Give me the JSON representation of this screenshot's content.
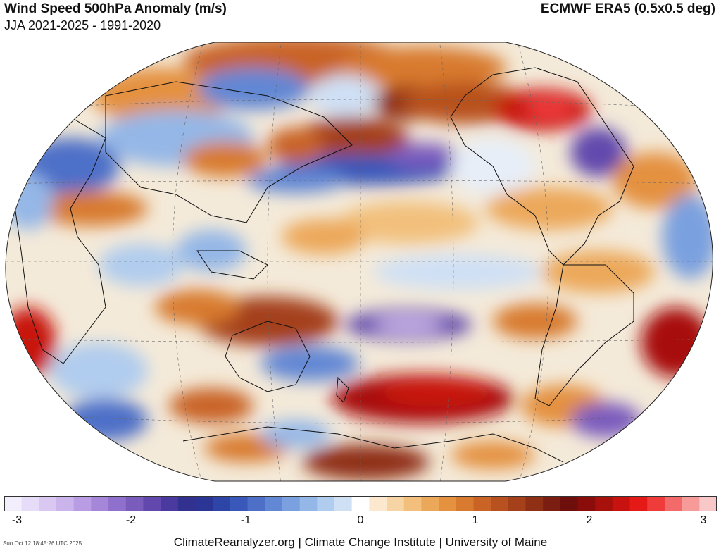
{
  "header": {
    "title": "Wind Speed 500hPa Anomaly (m/s)",
    "subtitle": "JJA 2021-2025 - 1991-2020",
    "source": "ECMWF ERA5 (0.5x0.5 deg)"
  },
  "colorbar": {
    "ticks": [
      "-3",
      "-2",
      "-1",
      "0",
      "1",
      "2",
      "3"
    ],
    "colors": [
      "#f3eefb",
      "#e7dcf7",
      "#dac8f2",
      "#cbb3ec",
      "#b99de4",
      "#a586d9",
      "#8f70cc",
      "#7a5cbd",
      "#6248ad",
      "#4a3aa0",
      "#33318f",
      "#2a3596",
      "#2e45a8",
      "#3a58ba",
      "#4d6fc8",
      "#6287d4",
      "#7aa0df",
      "#94b7e7",
      "#b0ccee",
      "#cfe0f5",
      "#ffffff",
      "#fbe8cf",
      "#f7d4a4",
      "#f2c07c",
      "#eca85a",
      "#e49140",
      "#d87a2f",
      "#c96426",
      "#b8511f",
      "#a4411b",
      "#8f2f16",
      "#7c1d11",
      "#6e0f0b",
      "#8a0d0b",
      "#a8100c",
      "#c81210",
      "#e51a17",
      "#f03b3b",
      "#f36a6a",
      "#f69a9a",
      "#f8c7c7"
    ]
  },
  "footer": "ClimateReanalyzer.org | Climate Change Institute | University of Maine",
  "timestamp": "Sun Oct 12 18:45:26 UTC 2025"
}
